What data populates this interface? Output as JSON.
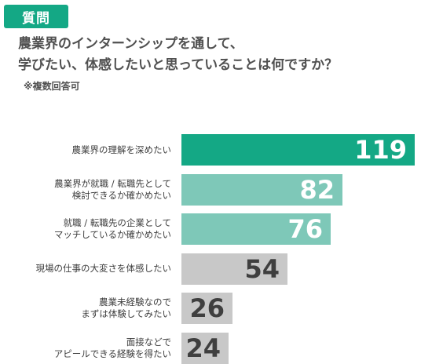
{
  "badge": {
    "label": "質問",
    "color": "#14a885"
  },
  "question": {
    "line1": "農業界のインターンシップを通して、",
    "line2": "学びたい、体感したいと思っていることは何ですか？"
  },
  "note": "※複数回答可",
  "colors": {
    "top": "#14a885",
    "mid": "#7ec8b8",
    "low": "#c8c8c8"
  },
  "chart_data": {
    "type": "bar",
    "orientation": "horizontal",
    "categories": [
      [
        "農業界の理解を深めたい"
      ],
      [
        "農業界が就職 / 転職先として",
        "検討できるか確かめたい"
      ],
      [
        "就職 / 転職先の企業として",
        "マッチしているか確かめたい"
      ],
      [
        "現場の仕事の大変さを体感したい"
      ],
      [
        "農業未経験なので",
        "まずは体験してみたい"
      ],
      [
        "面接などで",
        "アピールできる経験を得たい"
      ]
    ],
    "values": [
      119,
      82,
      76,
      54,
      26,
      24
    ],
    "xlim": [
      0,
      119
    ]
  }
}
